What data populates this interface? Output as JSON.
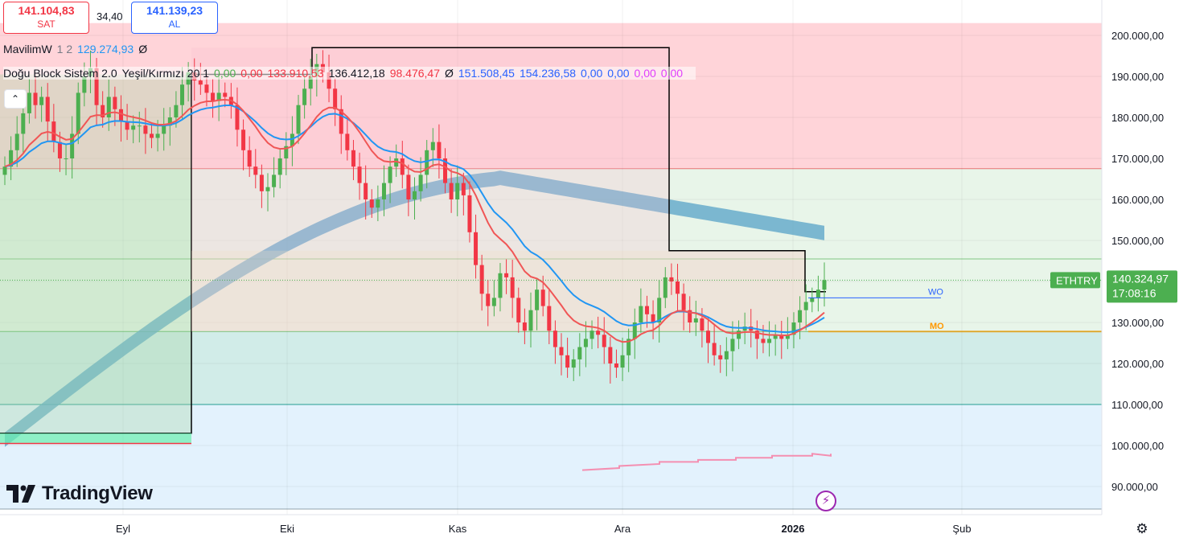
{
  "header": {
    "sell_price": "141.104,83",
    "sell_label": "SAT",
    "spread": "34,40",
    "buy_price": "141.139,23",
    "buy_label": "AL"
  },
  "indicators": {
    "mavilim": {
      "name": "MavilimW",
      "params": "1 2",
      "value": "129.274,93",
      "symbol": "Ø"
    },
    "dogu": {
      "name": "Doğu Block Sistem 2.0",
      "params": "Yeşil/Kırmızı 20 1",
      "values": [
        {
          "text": "0,00",
          "color": "#4caf50"
        },
        {
          "text": "0,00",
          "color": "#f23645"
        },
        {
          "text": "133.910,53",
          "color": "#f23645"
        },
        {
          "text": "136.412,18",
          "color": "#131722"
        },
        {
          "text": "98.476,47",
          "color": "#f23645"
        },
        {
          "text": "Ø",
          "color": "#131722"
        },
        {
          "text": "151.508,45",
          "color": "#2962ff"
        },
        {
          "text": "154.236,58",
          "color": "#2962ff"
        },
        {
          "text": "0,00",
          "color": "#2962ff"
        },
        {
          "text": "0,00",
          "color": "#2962ff"
        },
        {
          "text": "0,00",
          "color": "#e040fb"
        },
        {
          "text": "0,00",
          "color": "#e040fb"
        }
      ]
    }
  },
  "symbol_label": "ETHTRY",
  "last_price": "140.324,97",
  "countdown": "17:08:16",
  "level_labels": {
    "wo": "WO",
    "mo": "MO"
  },
  "logo_text": "TradingView",
  "icons": {
    "collapse": "chevron-up-icon",
    "bolt": "lightning-icon",
    "settings": "settings-icon",
    "logo": "tradingview-logo-icon"
  },
  "colors": {
    "up": "#4caf50",
    "down": "#f23645",
    "blue_line": "#2196f3",
    "red_line": "#f05656",
    "ribbon": "#5fa8c9"
  },
  "chart_data": {
    "type": "candlestick",
    "x_ticks": [
      "Eyl",
      "Eki",
      "Kas",
      "Ara",
      "2026",
      "Şub"
    ],
    "y_ticks": [
      "200.000,00",
      "190.000,00",
      "180.000,00",
      "170.000,00",
      "160.000,00",
      "150.000,00",
      "130.000,00",
      "120.000,00",
      "110.000,00",
      "100.000,00",
      "90.000,00"
    ],
    "ylim": [
      85000,
      205000
    ],
    "closes": [
      168000,
      172000,
      176000,
      181000,
      186000,
      183000,
      185000,
      179000,
      174000,
      170000,
      170000,
      176000,
      186000,
      190000,
      192000,
      183000,
      180000,
      185000,
      182000,
      179000,
      177000,
      178000,
      178000,
      176000,
      175000,
      176000,
      178000,
      180000,
      183000,
      188000,
      191000,
      189000,
      188000,
      186000,
      184000,
      186000,
      185000,
      183000,
      177000,
      172000,
      168000,
      166000,
      162000,
      163000,
      166000,
      170000,
      173000,
      176000,
      183000,
      187000,
      190000,
      193000,
      191000,
      187000,
      182000,
      176000,
      172000,
      168000,
      164000,
      160000,
      158000,
      160000,
      164000,
      168000,
      170000,
      166000,
      160000,
      162000,
      166000,
      172000,
      174000,
      170000,
      164000,
      160000,
      164000,
      161000,
      152000,
      144000,
      137000,
      134000,
      136000,
      142000,
      141000,
      136000,
      130000,
      128000,
      133000,
      138000,
      134000,
      128000,
      124000,
      122000,
      119000,
      121000,
      124000,
      126000,
      128000,
      127000,
      124000,
      120000,
      119000,
      122000,
      126000,
      130000,
      134000,
      132000,
      130000,
      136000,
      141000,
      140000,
      137000,
      133000,
      130000,
      131000,
      128000,
      125000,
      122000,
      121000,
      123000,
      126000,
      128000,
      129000,
      128000,
      126000,
      125000,
      126000,
      127000,
      126000,
      127000,
      130000,
      133000,
      135000,
      136000,
      138000,
      140325
    ],
    "levels": {
      "wo": 136000,
      "mo": 127800,
      "green_top": 145500,
      "red_zone_low": 167500,
      "blue_zone_top": 110000,
      "box_top": 197000,
      "box_mid": 147500,
      "box_bottom": 103000
    }
  }
}
